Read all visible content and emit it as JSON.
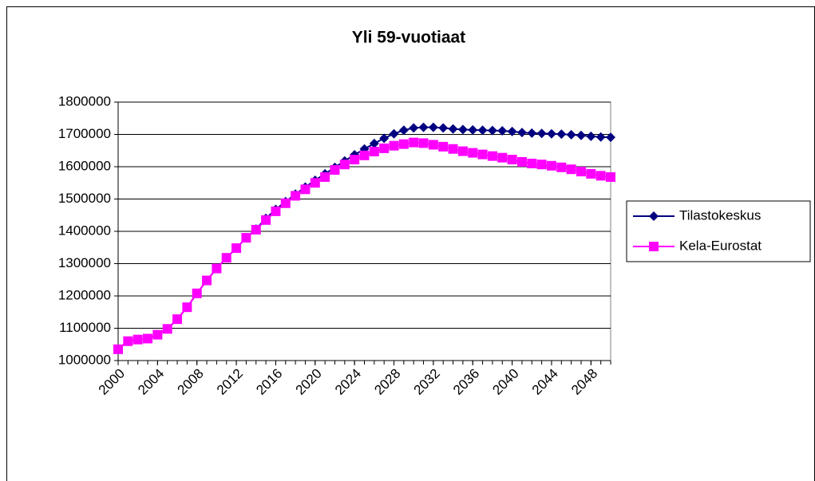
{
  "chart_data": {
    "type": "line",
    "title": "Yli 59-vuotiaat",
    "x": [
      2000,
      2001,
      2002,
      2003,
      2004,
      2005,
      2006,
      2007,
      2008,
      2009,
      2010,
      2011,
      2012,
      2013,
      2014,
      2015,
      2016,
      2017,
      2018,
      2019,
      2020,
      2021,
      2022,
      2023,
      2024,
      2025,
      2026,
      2027,
      2028,
      2029,
      2030,
      2031,
      2032,
      2033,
      2034,
      2035,
      2036,
      2037,
      2038,
      2039,
      2040,
      2041,
      2042,
      2043,
      2044,
      2045,
      2046,
      2047,
      2048,
      2049,
      2050
    ],
    "xlim": [
      2000,
      2050
    ],
    "xticks": [
      2000,
      2004,
      2008,
      2012,
      2016,
      2020,
      2024,
      2028,
      2032,
      2036,
      2040,
      2044,
      2048
    ],
    "ylim": [
      1000000,
      1800000
    ],
    "yticks": [
      1000000,
      1100000,
      1200000,
      1300000,
      1400000,
      1500000,
      1600000,
      1700000,
      1800000
    ],
    "grid": true,
    "legend": "right",
    "series": [
      {
        "name": "Tilastokeskus",
        "color": "#000080",
        "marker": "diamond",
        "values": [
          1035000,
          1060000,
          1065000,
          1068000,
          1080000,
          1098000,
          1128000,
          1165000,
          1208000,
          1248000,
          1285000,
          1318000,
          1348000,
          1380000,
          1407000,
          1440000,
          1468000,
          1492000,
          1515000,
          1537000,
          1558000,
          1578000,
          1598000,
          1618000,
          1637000,
          1655000,
          1672000,
          1688000,
          1702000,
          1713000,
          1720000,
          1722000,
          1722000,
          1720000,
          1717000,
          1715000,
          1714000,
          1713000,
          1712000,
          1711000,
          1709000,
          1706000,
          1704000,
          1703000,
          1702000,
          1701000,
          1699000,
          1697000,
          1694000,
          1692000,
          1691000
        ]
      },
      {
        "name": "Kela-Eurostat",
        "color": "#ff00ff",
        "marker": "square",
        "values": [
          1035000,
          1060000,
          1065000,
          1068000,
          1080000,
          1098000,
          1128000,
          1165000,
          1208000,
          1248000,
          1285000,
          1318000,
          1348000,
          1380000,
          1405000,
          1435000,
          1462000,
          1487000,
          1510000,
          1530000,
          1550000,
          1568000,
          1590000,
          1607000,
          1622000,
          1635000,
          1647000,
          1657000,
          1665000,
          1670000,
          1675000,
          1673000,
          1668000,
          1662000,
          1655000,
          1648000,
          1643000,
          1638000,
          1633000,
          1628000,
          1622000,
          1615000,
          1610000,
          1607000,
          1603000,
          1598000,
          1592000,
          1585000,
          1578000,
          1572000,
          1568000
        ]
      }
    ]
  }
}
